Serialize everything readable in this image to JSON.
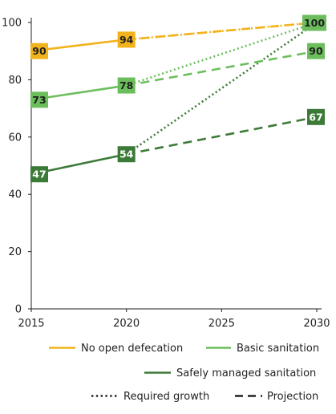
{
  "chart_data": {
    "type": "line",
    "x": [
      2015,
      2020,
      2025,
      2030
    ],
    "xlim": [
      2015,
      2030
    ],
    "ylim": [
      0,
      100
    ],
    "yticks": [
      0,
      20,
      40,
      60,
      80,
      100
    ],
    "xticks": [
      2015,
      2020,
      2025,
      2030
    ],
    "xtick_labels": [
      "2015",
      "2020",
      "2025",
      "2030"
    ],
    "ytick_labels": [
      "0",
      "20",
      "40",
      "60",
      "80",
      "100"
    ],
    "grid": false,
    "series": [
      {
        "key": "no_open",
        "name": "No open defecation",
        "color": "#F2B21B",
        "label_text_color": "#222222",
        "actual": [
          [
            2015,
            90
          ],
          [
            2020,
            94
          ]
        ],
        "projection": [
          [
            2020,
            94
          ],
          [
            2030,
            100
          ]
        ],
        "required": [
          [
            2020,
            94
          ],
          [
            2030,
            100
          ]
        ],
        "labels": [
          {
            "x": 2015,
            "y": 90,
            "text": "90"
          },
          {
            "x": 2020,
            "y": 94,
            "text": "94"
          }
        ]
      },
      {
        "key": "basic",
        "name": "Basic sanitation",
        "color": "#6CBE5D",
        "label_text_color": "#1f1f1f",
        "actual": [
          [
            2015,
            73
          ],
          [
            2020,
            78
          ]
        ],
        "projection": [
          [
            2020,
            78
          ],
          [
            2030,
            90
          ]
        ],
        "required": [
          [
            2020,
            78
          ],
          [
            2030,
            100
          ]
        ],
        "labels": [
          {
            "x": 2015,
            "y": 73,
            "text": "73"
          },
          {
            "x": 2020,
            "y": 78,
            "text": "78"
          },
          {
            "x": 2030,
            "y": 90,
            "text": "90"
          }
        ]
      },
      {
        "key": "safely",
        "name": "Safely managed sanitation",
        "color": "#3C7A37",
        "label_text_color": "#ffffff",
        "actual": [
          [
            2015,
            47
          ],
          [
            2020,
            54
          ]
        ],
        "projection": [
          [
            2020,
            54
          ],
          [
            2030,
            67
          ]
        ],
        "required": [
          [
            2020,
            54
          ],
          [
            2030,
            100
          ]
        ],
        "labels": [
          {
            "x": 2015,
            "y": 47,
            "text": "47"
          },
          {
            "x": 2020,
            "y": 54,
            "text": "54"
          },
          {
            "x": 2030,
            "y": 67,
            "text": "67"
          }
        ]
      }
    ],
    "target_label": {
      "x": 2030,
      "y": 100,
      "text": "100",
      "color": "#6CBE5D",
      "text_color": "#1f1f1f"
    },
    "legend": {
      "placement": "bottom",
      "series_entries": [
        {
          "text": "No open defecation",
          "color": "#F2B21B"
        },
        {
          "text": "Basic sanitation",
          "color": "#6CBE5D"
        },
        {
          "text": "Safely managed sanitation",
          "color": "#3C7A37"
        }
      ],
      "style_entries": [
        {
          "text": "Required growth",
          "style": "dotted"
        },
        {
          "text": "Projection",
          "style": "dashed"
        }
      ]
    }
  }
}
